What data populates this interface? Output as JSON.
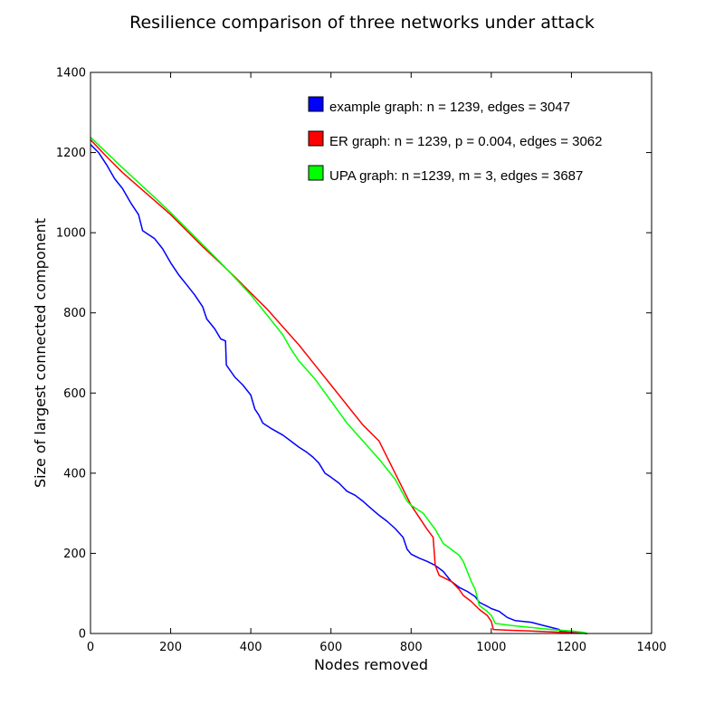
{
  "chart_data": {
    "type": "line",
    "title": "Resilience comparison of three networks under attack",
    "xlabel": "Nodes removed",
    "ylabel": "Size of largest connected component",
    "xlim": [
      0,
      1400
    ],
    "ylim": [
      0,
      1400
    ],
    "xticks": [
      0,
      200,
      400,
      600,
      800,
      1000,
      1200,
      1400
    ],
    "yticks": [
      0,
      200,
      400,
      600,
      800,
      1000,
      1200,
      1400
    ],
    "grid": false,
    "legend_position": "top-right",
    "series": [
      {
        "name": "example graph: n = 1239, edges = 3047",
        "color": "#0000ff",
        "points": [
          [
            0,
            1220
          ],
          [
            20,
            1200
          ],
          [
            40,
            1170
          ],
          [
            60,
            1135
          ],
          [
            80,
            1110
          ],
          [
            100,
            1075
          ],
          [
            120,
            1045
          ],
          [
            130,
            1005
          ],
          [
            160,
            985
          ],
          [
            180,
            960
          ],
          [
            200,
            925
          ],
          [
            220,
            895
          ],
          [
            240,
            870
          ],
          [
            260,
            845
          ],
          [
            280,
            815
          ],
          [
            290,
            785
          ],
          [
            310,
            760
          ],
          [
            325,
            735
          ],
          [
            337,
            730
          ],
          [
            339,
            670
          ],
          [
            360,
            640
          ],
          [
            380,
            620
          ],
          [
            400,
            595
          ],
          [
            410,
            560
          ],
          [
            420,
            545
          ],
          [
            430,
            525
          ],
          [
            450,
            512
          ],
          [
            480,
            495
          ],
          [
            500,
            480
          ],
          [
            520,
            465
          ],
          [
            540,
            452
          ],
          [
            555,
            440
          ],
          [
            570,
            425
          ],
          [
            585,
            400
          ],
          [
            600,
            390
          ],
          [
            620,
            375
          ],
          [
            640,
            355
          ],
          [
            660,
            345
          ],
          [
            680,
            330
          ],
          [
            700,
            312
          ],
          [
            720,
            295
          ],
          [
            740,
            280
          ],
          [
            760,
            262
          ],
          [
            780,
            240
          ],
          [
            790,
            210
          ],
          [
            800,
            198
          ],
          [
            820,
            188
          ],
          [
            840,
            180
          ],
          [
            860,
            170
          ],
          [
            880,
            155
          ],
          [
            900,
            130
          ],
          [
            920,
            115
          ],
          [
            940,
            105
          ],
          [
            960,
            92
          ],
          [
            970,
            78
          ],
          [
            990,
            68
          ],
          [
            1000,
            62
          ],
          [
            1020,
            55
          ],
          [
            1040,
            40
          ],
          [
            1060,
            32
          ],
          [
            1100,
            28
          ],
          [
            1130,
            20
          ],
          [
            1150,
            15
          ],
          [
            1170,
            10
          ],
          [
            1172,
            5
          ],
          [
            1200,
            3
          ],
          [
            1239,
            0
          ]
        ]
      },
      {
        "name": "ER graph: n = 1239, p = 0.004, edges = 3062",
        "color": "#ff0000",
        "points": [
          [
            0,
            1232
          ],
          [
            40,
            1190
          ],
          [
            80,
            1150
          ],
          [
            120,
            1115
          ],
          [
            160,
            1080
          ],
          [
            200,
            1045
          ],
          [
            240,
            1005
          ],
          [
            280,
            965
          ],
          [
            320,
            928
          ],
          [
            360,
            890
          ],
          [
            400,
            850
          ],
          [
            440,
            810
          ],
          [
            480,
            765
          ],
          [
            520,
            720
          ],
          [
            560,
            670
          ],
          [
            600,
            620
          ],
          [
            640,
            570
          ],
          [
            680,
            520
          ],
          [
            720,
            480
          ],
          [
            740,
            440
          ],
          [
            760,
            400
          ],
          [
            780,
            360
          ],
          [
            800,
            320
          ],
          [
            820,
            290
          ],
          [
            840,
            260
          ],
          [
            855,
            240
          ],
          [
            860,
            170
          ],
          [
            870,
            145
          ],
          [
            900,
            130
          ],
          [
            920,
            110
          ],
          [
            930,
            95
          ],
          [
            950,
            80
          ],
          [
            960,
            70
          ],
          [
            970,
            60
          ],
          [
            990,
            45
          ],
          [
            1000,
            30
          ],
          [
            1005,
            10
          ],
          [
            1050,
            8
          ],
          [
            1100,
            6
          ],
          [
            1150,
            4
          ],
          [
            1200,
            2
          ],
          [
            1239,
            0
          ]
        ]
      },
      {
        "name": "UPA graph: n =1239, m = 3, edges = 3687",
        "color": "#00ff00",
        "points": [
          [
            0,
            1238
          ],
          [
            40,
            1200
          ],
          [
            80,
            1162
          ],
          [
            120,
            1125
          ],
          [
            160,
            1088
          ],
          [
            200,
            1050
          ],
          [
            240,
            1010
          ],
          [
            280,
            970
          ],
          [
            320,
            930
          ],
          [
            360,
            888
          ],
          [
            400,
            845
          ],
          [
            440,
            795
          ],
          [
            480,
            745
          ],
          [
            500,
            710
          ],
          [
            520,
            680
          ],
          [
            560,
            635
          ],
          [
            600,
            580
          ],
          [
            640,
            525
          ],
          [
            680,
            480
          ],
          [
            720,
            435
          ],
          [
            760,
            385
          ],
          [
            790,
            330
          ],
          [
            800,
            320
          ],
          [
            830,
            300
          ],
          [
            860,
            260
          ],
          [
            880,
            225
          ],
          [
            900,
            210
          ],
          [
            920,
            195
          ],
          [
            930,
            180
          ],
          [
            950,
            130
          ],
          [
            960,
            110
          ],
          [
            970,
            70
          ],
          [
            990,
            55
          ],
          [
            1000,
            45
          ],
          [
            1010,
            25
          ],
          [
            1050,
            20
          ],
          [
            1100,
            15
          ],
          [
            1150,
            10
          ],
          [
            1200,
            6
          ],
          [
            1230,
            3
          ],
          [
            1239,
            0
          ]
        ]
      }
    ]
  }
}
